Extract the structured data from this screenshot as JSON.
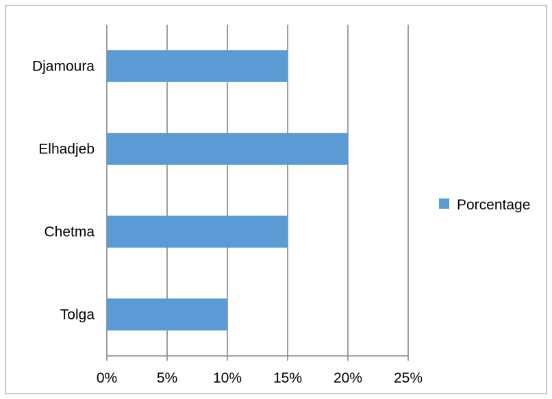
{
  "chart_data": {
    "type": "bar",
    "orientation": "horizontal",
    "categories": [
      "Djamoura",
      "Elhadjeb",
      "Chetma",
      "Tolga"
    ],
    "series": [
      {
        "name": "Porcentage",
        "values": [
          15,
          20,
          15,
          10
        ],
        "color": "#5b9bd5"
      }
    ],
    "xlim": [
      0,
      25
    ],
    "x_ticks": [
      0,
      5,
      10,
      15,
      20,
      25
    ],
    "x_tick_labels": [
      "0%",
      "5%",
      "10%",
      "15%",
      "20%",
      "25%"
    ],
    "title": "",
    "xlabel": "",
    "ylabel": "",
    "grid": "vertical",
    "legend": "right",
    "gridline_color": "#868686"
  }
}
